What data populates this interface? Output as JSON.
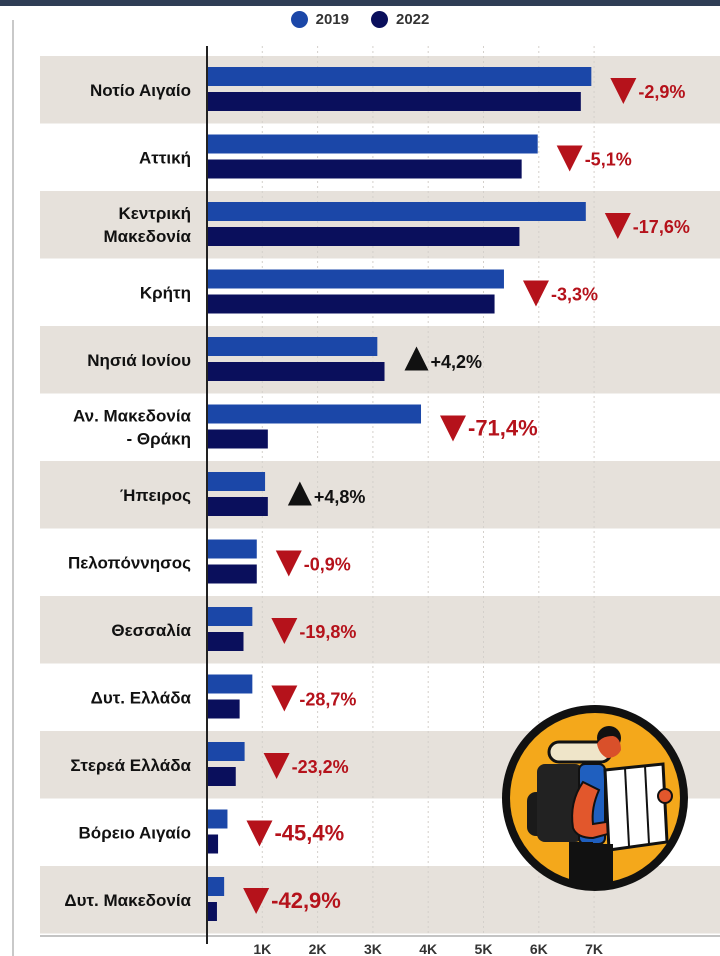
{
  "legend": {
    "series_2019": "2019",
    "series_2022": "2022"
  },
  "colors": {
    "series_2019": "#1b47a8",
    "series_2022": "#0a0f5c",
    "row_band": "#e6e1db",
    "decrease": "#b5121b",
    "increase": "#111111",
    "axis": "#222222"
  },
  "chart_data": {
    "type": "bar",
    "orientation": "horizontal",
    "categories": [
      "Νοτίο Αιγαίο",
      "Αττική",
      "Κεντρική Μακεδονία",
      "Κρήτη",
      "Νησιά Ιονίου",
      "Αν. Μακεδονία - Θράκη",
      "Ήπειρος",
      "Πελοπόννησος",
      "Θεσσαλία",
      "Δυτ. Ελλάδα",
      "Στερεά Ελλάδα",
      "Βόρειο Αιγαίο",
      "Δυτ. Μακεδονία"
    ],
    "category_lines": [
      [
        "Νοτίο Αιγαίο"
      ],
      [
        "Αττική"
      ],
      [
        "Κεντρική",
        "Μακεδονία"
      ],
      [
        "Κρήτη"
      ],
      [
        "Νησιά Ιονίου"
      ],
      [
        "Αν. Μακεδονία",
        "- Θράκη"
      ],
      [
        "Ήπειρος"
      ],
      [
        "Πελοπόννησος"
      ],
      [
        "Θεσσαλία"
      ],
      [
        "Δυτ. Ελλάδα"
      ],
      [
        "Στερεά Ελλάδα"
      ],
      [
        "Βόρειο Αιγαίο"
      ],
      [
        "Δυτ. Μακεδονία"
      ]
    ],
    "series": [
      {
        "name": "2019",
        "values": [
          6950,
          5980,
          6850,
          5370,
          3080,
          3870,
          1050,
          900,
          820,
          820,
          680,
          370,
          310
        ]
      },
      {
        "name": "2022",
        "values": [
          6760,
          5690,
          5650,
          5200,
          3210,
          1100,
          1100,
          900,
          660,
          590,
          520,
          200,
          180
        ]
      }
    ],
    "change_labels": [
      "-2,9%",
      "-5,1%",
      "-17,6%",
      "-3,3%",
      "+4,2%",
      "-71,4%",
      "+4,8%",
      "-0,9%",
      "-19,8%",
      "-28,7%",
      "-23,2%",
      "-45,4%",
      "-42,9%"
    ],
    "change_direction": [
      "down",
      "down",
      "down",
      "down",
      "up",
      "down",
      "up",
      "down",
      "down",
      "down",
      "down",
      "down",
      "down"
    ],
    "x_ticks": [
      "1K",
      "2K",
      "3K",
      "4K",
      "5K",
      "6K",
      "7K"
    ],
    "x_tick_values": [
      1000,
      2000,
      3000,
      4000,
      5000,
      6000,
      7000
    ],
    "xlim": [
      0,
      7500
    ],
    "grid": true,
    "legend_position": "top-center"
  }
}
